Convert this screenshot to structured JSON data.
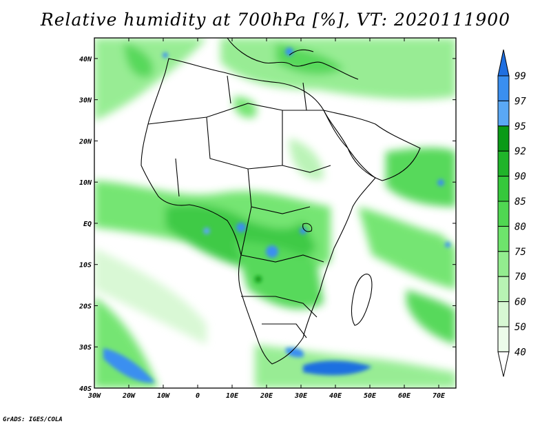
{
  "title": "Relative humidity at 700hPa [%], VT: 2020111900",
  "map": {
    "lon_range": [
      -30,
      75
    ],
    "lat_range": [
      -40,
      45
    ],
    "lon_ticks": [
      "30W",
      "20W",
      "10W",
      "0",
      "10E",
      "20E",
      "30E",
      "40E",
      "50E",
      "60E",
      "70E"
    ],
    "lat_ticks": [
      "40N",
      "30N",
      "20N",
      "10N",
      "EQ",
      "10S",
      "20S",
      "30S",
      "40S"
    ]
  },
  "colorbar": {
    "levels": [
      "99",
      "97",
      "95",
      "92",
      "90",
      "85",
      "80",
      "75",
      "70",
      "60",
      "50",
      "40"
    ],
    "colors": [
      "#1f6fe0",
      "#3a8ff0",
      "#5aa8f5",
      "#0a9a17",
      "#20b42a",
      "#36c83c",
      "#50d752",
      "#6ee46c",
      "#93ec8f",
      "#b8f3b4",
      "#d7f8d3",
      "#ecfcea"
    ]
  },
  "credit": "GrADS: IGES/COLA"
}
